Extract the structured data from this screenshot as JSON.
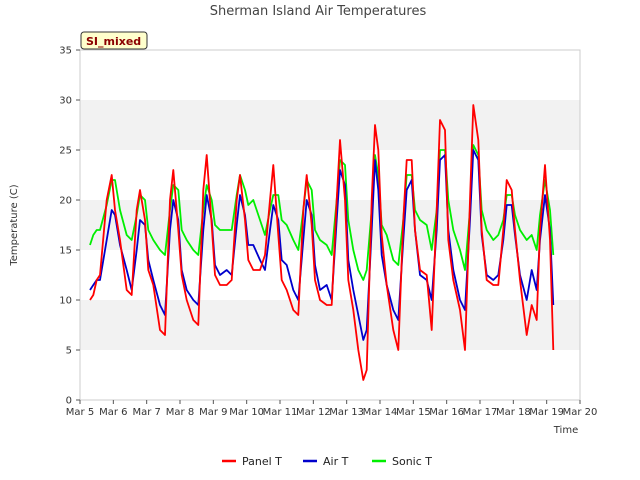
{
  "chart_data": {
    "type": "line",
    "title": "Sherman Island Air Temperatures",
    "xlabel": "Time",
    "ylabel": "Temperature (C)",
    "badge": "SI_mixed",
    "ylim": [
      0,
      35
    ],
    "yticks": [
      0,
      5,
      10,
      15,
      20,
      25,
      30,
      35
    ],
    "xlim": [
      5,
      20
    ],
    "xticks": [
      5,
      6,
      7,
      8,
      9,
      10,
      11,
      12,
      13,
      14,
      15,
      16,
      17,
      18,
      19,
      20
    ],
    "xtick_labels": [
      "Mar 5",
      "Mar 6",
      "Mar 7",
      "Mar 8",
      "Mar 9",
      "Mar 10",
      "Mar 11",
      "Mar 12",
      "Mar 13",
      "Mar 14",
      "Mar 15",
      "Mar 16",
      "Mar 17",
      "Mar 18",
      "Mar 19",
      "Mar 20"
    ],
    "grid": "horizontal bands",
    "legend_placement": "bottom-center",
    "colors": {
      "Panel T": "#ff0000",
      "Air T": "#0000cc",
      "Sonic T": "#00ee00",
      "band": "#f2f2f2",
      "badge_bg": "#ffffcc"
    },
    "series": [
      {
        "name": "Panel T",
        "x": [
          5.3,
          5.4,
          5.5,
          5.6,
          5.8,
          5.95,
          6.05,
          6.2,
          6.4,
          6.55,
          6.7,
          6.8,
          6.95,
          7.05,
          7.2,
          7.4,
          7.55,
          7.7,
          7.8,
          7.95,
          8.05,
          8.2,
          8.4,
          8.55,
          8.7,
          8.8,
          8.95,
          9.05,
          9.2,
          9.4,
          9.55,
          9.7,
          9.8,
          9.95,
          10.05,
          10.2,
          10.4,
          10.55,
          10.7,
          10.8,
          10.95,
          11.05,
          11.2,
          11.4,
          11.55,
          11.7,
          11.8,
          11.95,
          12.05,
          12.2,
          12.4,
          12.55,
          12.7,
          12.8,
          12.95,
          13.05,
          13.2,
          13.35,
          13.5,
          13.6,
          13.75,
          13.85,
          13.95,
          14.05,
          14.2,
          14.4,
          14.55,
          14.7,
          14.8,
          14.95,
          15.05,
          15.2,
          15.4,
          15.55,
          15.7,
          15.8,
          15.95,
          16.05,
          16.2,
          16.4,
          16.55,
          16.7,
          16.8,
          16.95,
          17.05,
          17.2,
          17.4,
          17.55,
          17.7,
          17.8,
          17.95,
          18.05,
          18.2,
          18.4,
          18.55,
          18.7,
          18.8,
          18.95,
          19.1,
          19.2
        ],
        "values": [
          10.0,
          10.5,
          12.0,
          12.5,
          20.0,
          22.5,
          19.0,
          16.0,
          11.0,
          10.5,
          19.0,
          21.0,
          18.0,
          13.0,
          11.5,
          7.0,
          6.5,
          20.0,
          23.0,
          17.0,
          12.5,
          10.0,
          8.0,
          7.5,
          21.0,
          24.5,
          17.5,
          12.5,
          11.5,
          11.5,
          12.0,
          20.0,
          22.5,
          18.0,
          14.0,
          13.0,
          13.0,
          14.5,
          20.0,
          23.5,
          16.5,
          12.0,
          11.0,
          9.0,
          8.5,
          19.0,
          22.5,
          17.5,
          12.0,
          10.0,
          9.5,
          9.5,
          20.0,
          26.0,
          20.0,
          12.0,
          9.0,
          5.0,
          2.0,
          3.0,
          20.0,
          27.5,
          25.0,
          16.5,
          11.5,
          7.0,
          5.0,
          18.0,
          24.0,
          24.0,
          17.0,
          13.0,
          12.5,
          7.0,
          19.0,
          28.0,
          27.0,
          16.0,
          12.0,
          9.0,
          5.0,
          20.0,
          29.5,
          26.0,
          17.0,
          12.0,
          11.5,
          11.5,
          17.0,
          22.0,
          21.0,
          17.0,
          12.0,
          6.5,
          9.5,
          8.0,
          17.0,
          23.5,
          16.0,
          5.0
        ]
      },
      {
        "name": "Air T",
        "x": [
          5.3,
          5.4,
          5.5,
          5.6,
          5.8,
          5.95,
          6.05,
          6.2,
          6.4,
          6.55,
          6.7,
          6.8,
          6.95,
          7.05,
          7.2,
          7.4,
          7.55,
          7.7,
          7.8,
          7.95,
          8.05,
          8.2,
          8.4,
          8.55,
          8.7,
          8.8,
          8.95,
          9.05,
          9.2,
          9.4,
          9.55,
          9.7,
          9.8,
          9.95,
          10.05,
          10.2,
          10.4,
          10.55,
          10.7,
          10.8,
          10.95,
          11.05,
          11.2,
          11.4,
          11.55,
          11.7,
          11.8,
          11.95,
          12.05,
          12.2,
          12.4,
          12.55,
          12.7,
          12.8,
          12.95,
          13.05,
          13.2,
          13.35,
          13.5,
          13.6,
          13.75,
          13.85,
          13.95,
          14.05,
          14.2,
          14.4,
          14.55,
          14.7,
          14.8,
          14.95,
          15.05,
          15.2,
          15.4,
          15.55,
          15.7,
          15.8,
          15.95,
          16.05,
          16.2,
          16.4,
          16.55,
          16.7,
          16.8,
          16.95,
          17.05,
          17.2,
          17.4,
          17.55,
          17.7,
          17.8,
          17.95,
          18.05,
          18.2,
          18.4,
          18.55,
          18.7,
          18.8,
          18.95,
          19.1,
          19.2
        ],
        "values": [
          11.0,
          11.5,
          12.0,
          12.0,
          16.0,
          19.0,
          18.5,
          15.5,
          13.0,
          11.0,
          15.0,
          18.0,
          17.5,
          14.0,
          12.0,
          9.5,
          8.5,
          17.0,
          20.0,
          18.0,
          13.0,
          11.0,
          10.0,
          9.5,
          17.0,
          20.5,
          18.0,
          13.5,
          12.5,
          13.0,
          12.5,
          17.5,
          20.5,
          18.5,
          15.5,
          15.5,
          14.0,
          13.0,
          17.0,
          19.5,
          18.0,
          14.0,
          13.5,
          11.0,
          10.0,
          16.0,
          20.0,
          18.5,
          13.5,
          11.0,
          11.5,
          10.0,
          18.0,
          23.0,
          21.5,
          14.0,
          11.0,
          8.5,
          6.0,
          7.0,
          17.0,
          24.0,
          21.0,
          14.5,
          11.5,
          9.0,
          8.0,
          16.0,
          21.0,
          22.0,
          17.0,
          12.5,
          12.0,
          10.0,
          17.0,
          24.0,
          24.5,
          17.0,
          13.0,
          10.0,
          9.0,
          18.0,
          25.0,
          24.0,
          16.5,
          12.5,
          12.0,
          12.5,
          16.0,
          19.5,
          19.5,
          16.5,
          12.5,
          10.0,
          13.0,
          11.0,
          16.0,
          20.5,
          17.0,
          9.5
        ]
      },
      {
        "name": "Sonic T",
        "x": [
          5.3,
          5.4,
          5.5,
          5.6,
          5.8,
          5.95,
          6.05,
          6.2,
          6.4,
          6.55,
          6.7,
          6.8,
          6.95,
          7.05,
          7.2,
          7.4,
          7.55,
          7.7,
          7.8,
          7.95,
          8.05,
          8.2,
          8.4,
          8.55,
          8.7,
          8.8,
          8.95,
          9.05,
          9.2,
          9.4,
          9.55,
          9.7,
          9.8,
          9.95,
          10.05,
          10.2,
          10.4,
          10.55,
          10.7,
          10.8,
          10.95,
          11.05,
          11.2,
          11.4,
          11.55,
          11.7,
          11.8,
          11.95,
          12.05,
          12.2,
          12.4,
          12.55,
          12.7,
          12.8,
          12.95,
          13.05,
          13.2,
          13.35,
          13.5,
          13.6,
          13.75,
          13.85,
          13.95,
          14.05,
          14.2,
          14.4,
          14.55,
          14.7,
          14.8,
          14.95,
          15.05,
          15.2,
          15.4,
          15.55,
          15.7,
          15.8,
          15.95,
          16.05,
          16.2,
          16.4,
          16.55,
          16.7,
          16.8,
          16.95,
          17.05,
          17.2,
          17.4,
          17.55,
          17.7,
          17.8,
          17.95,
          18.05,
          18.2,
          18.4,
          18.55,
          18.7,
          18.8,
          18.95,
          19.1,
          19.2
        ],
        "values": [
          15.5,
          16.5,
          17.0,
          17.0,
          19.5,
          22.0,
          22.0,
          19.0,
          16.5,
          16.0,
          18.5,
          20.5,
          20.0,
          17.0,
          16.0,
          15.0,
          14.5,
          19.0,
          21.5,
          21.0,
          17.0,
          16.0,
          15.0,
          14.5,
          19.0,
          21.5,
          20.0,
          17.5,
          17.0,
          17.0,
          17.0,
          20.5,
          22.5,
          21.0,
          19.5,
          20.0,
          18.0,
          16.5,
          19.0,
          20.5,
          20.5,
          18.0,
          17.5,
          16.0,
          15.0,
          19.0,
          22.0,
          21.0,
          17.0,
          16.0,
          15.5,
          14.5,
          20.0,
          24.0,
          23.5,
          18.0,
          15.0,
          13.0,
          12.0,
          13.0,
          19.0,
          24.5,
          22.5,
          17.5,
          16.5,
          14.0,
          13.5,
          18.0,
          22.5,
          22.5,
          19.0,
          18.0,
          17.5,
          15.0,
          19.0,
          25.0,
          25.0,
          20.0,
          17.0,
          15.0,
          13.0,
          19.0,
          25.5,
          24.5,
          19.0,
          17.0,
          16.0,
          16.5,
          18.0,
          20.5,
          20.5,
          18.5,
          17.0,
          16.0,
          16.5,
          15.0,
          18.5,
          22.0,
          19.0,
          14.5
        ]
      }
    ]
  }
}
